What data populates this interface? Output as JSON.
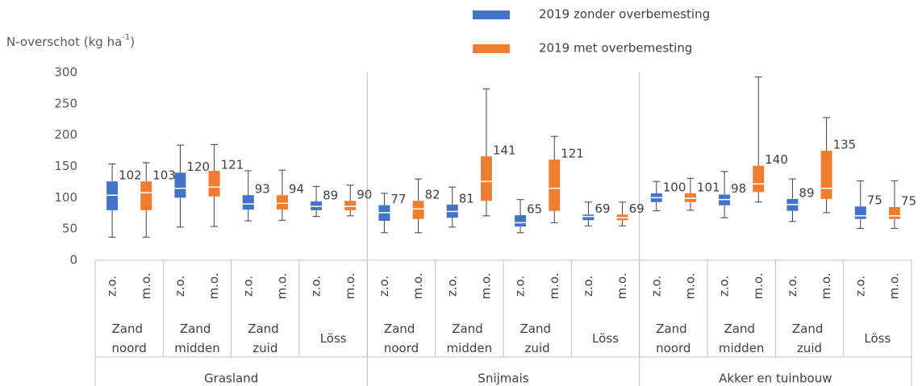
{
  "chart_data": {
    "type": "box",
    "ylabel": "N-overschot (kg ha",
    "ylabel_sup": "-1",
    "ylabel_end": ")",
    "ylim": [
      0,
      300
    ],
    "yticks": [
      0,
      50,
      100,
      150,
      200,
      250,
      300
    ],
    "grid": false,
    "legend": "top",
    "crops": [
      "Grasland",
      "Snijmais",
      "Akker en tuinbouw"
    ],
    "regions": [
      "Zand noord",
      "Zand midden",
      "Zand zuid",
      "Löss",
      "Zand noord",
      "Zand midden",
      "Zand zuid",
      "Löss",
      "Zand noord",
      "Zand midden",
      "Zand zuid",
      "Löss"
    ],
    "series": [
      {
        "name": "2019 zonder overbemesting",
        "short": "z.o.",
        "color": "#4472c4",
        "values": [
          {
            "low": 37,
            "q1": 80,
            "median": 104,
            "q3": 126,
            "high": 154,
            "label": 102
          },
          {
            "low": 53,
            "q1": 100,
            "median": 115,
            "q3": 140,
            "high": 184,
            "label": 120
          },
          {
            "low": 63,
            "q1": 81,
            "median": 90,
            "q3": 104,
            "high": 143,
            "label": 93
          },
          {
            "low": 70,
            "q1": 80,
            "median": 86,
            "q3": 94,
            "high": 118,
            "label": 89
          },
          {
            "low": 44,
            "q1": 63,
            "median": 76,
            "q3": 88,
            "high": 107,
            "label": 77
          },
          {
            "low": 53,
            "q1": 68,
            "median": 78,
            "q3": 89,
            "high": 117,
            "label": 81
          },
          {
            "low": 44,
            "q1": 54,
            "median": 60,
            "q3": 72,
            "high": 97,
            "label": 65
          },
          {
            "low": 55,
            "q1": 64,
            "median": 70,
            "q3": 73,
            "high": 93,
            "label": 69
          },
          {
            "low": 79,
            "q1": 93,
            "median": 100,
            "q3": 107,
            "high": 126,
            "label": 100
          },
          {
            "low": 68,
            "q1": 88,
            "median": 97,
            "q3": 105,
            "high": 142,
            "label": 98
          },
          {
            "low": 62,
            "q1": 79,
            "median": 89,
            "q3": 98,
            "high": 130,
            "label": 89
          },
          {
            "low": 51,
            "q1": 66,
            "median": 71,
            "q3": 86,
            "high": 127,
            "label": 75
          }
        ]
      },
      {
        "name": "2019 met overbemesting",
        "short": "m.o.",
        "color": "#ed7d31",
        "values": [
          {
            "low": 37,
            "q1": 80,
            "median": 108,
            "q3": 126,
            "high": 156,
            "label": 103
          },
          {
            "low": 54,
            "q1": 102,
            "median": 117,
            "q3": 143,
            "high": 185,
            "label": 121
          },
          {
            "low": 64,
            "q1": 81,
            "median": 91,
            "q3": 104,
            "high": 144,
            "label": 94
          },
          {
            "low": 71,
            "q1": 80,
            "median": 86,
            "q3": 95,
            "high": 120,
            "label": 90
          },
          {
            "low": 44,
            "q1": 66,
            "median": 82,
            "q3": 95,
            "high": 130,
            "label": 82
          },
          {
            "low": 71,
            "q1": 95,
            "median": 126,
            "q3": 166,
            "high": 274,
            "label": 141
          },
          {
            "low": 60,
            "q1": 79,
            "median": 115,
            "q3": 161,
            "high": 198,
            "label": 121
          },
          {
            "low": 55,
            "q1": 64,
            "median": 68,
            "q3": 73,
            "high": 93,
            "label": 69
          },
          {
            "low": 80,
            "q1": 93,
            "median": 99,
            "q3": 107,
            "high": 131,
            "label": 101
          },
          {
            "low": 93,
            "q1": 109,
            "median": 122,
            "q3": 151,
            "high": 293,
            "label": 140
          },
          {
            "low": 76,
            "q1": 98,
            "median": 115,
            "q3": 175,
            "high": 228,
            "label": 135
          },
          {
            "low": 51,
            "q1": 66,
            "median": 71,
            "q3": 85,
            "high": 127,
            "label": 75
          }
        ]
      }
    ]
  }
}
